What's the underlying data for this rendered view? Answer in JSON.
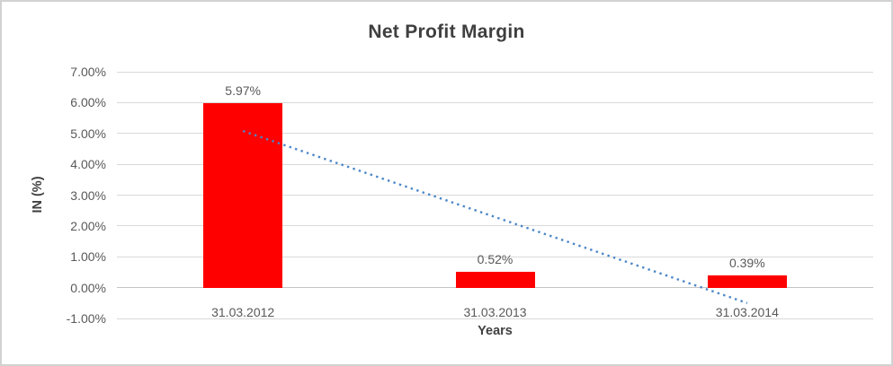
{
  "frame": {
    "background": "#ffffff",
    "border_color": "#d2d2d2"
  },
  "chart_data": {
    "type": "bar",
    "title": "Net Profit Margin",
    "xlabel": "Years",
    "ylabel": "IN (%)",
    "categories": [
      "31.03.2012",
      "31.03.2013",
      "31.03.2014"
    ],
    "values": [
      5.97,
      0.52,
      0.39
    ],
    "data_labels": [
      "5.97%",
      "0.52%",
      "0.39%"
    ],
    "bar_color": "#ff0000",
    "ylim": [
      -1,
      7
    ],
    "ytick_step": 1,
    "ytick_labels": [
      "7.00%",
      "6.00%",
      "5.00%",
      "4.00%",
      "3.00%",
      "2.00%",
      "1.00%",
      "0.00%",
      "-1.00%"
    ],
    "grid": true,
    "gridline_color": "#d9d9d9",
    "legend": "none",
    "trendline": {
      "type": "linear",
      "style": "dotted",
      "color": "#4a86c8",
      "start_value": 5.08,
      "end_value": -0.5
    }
  }
}
